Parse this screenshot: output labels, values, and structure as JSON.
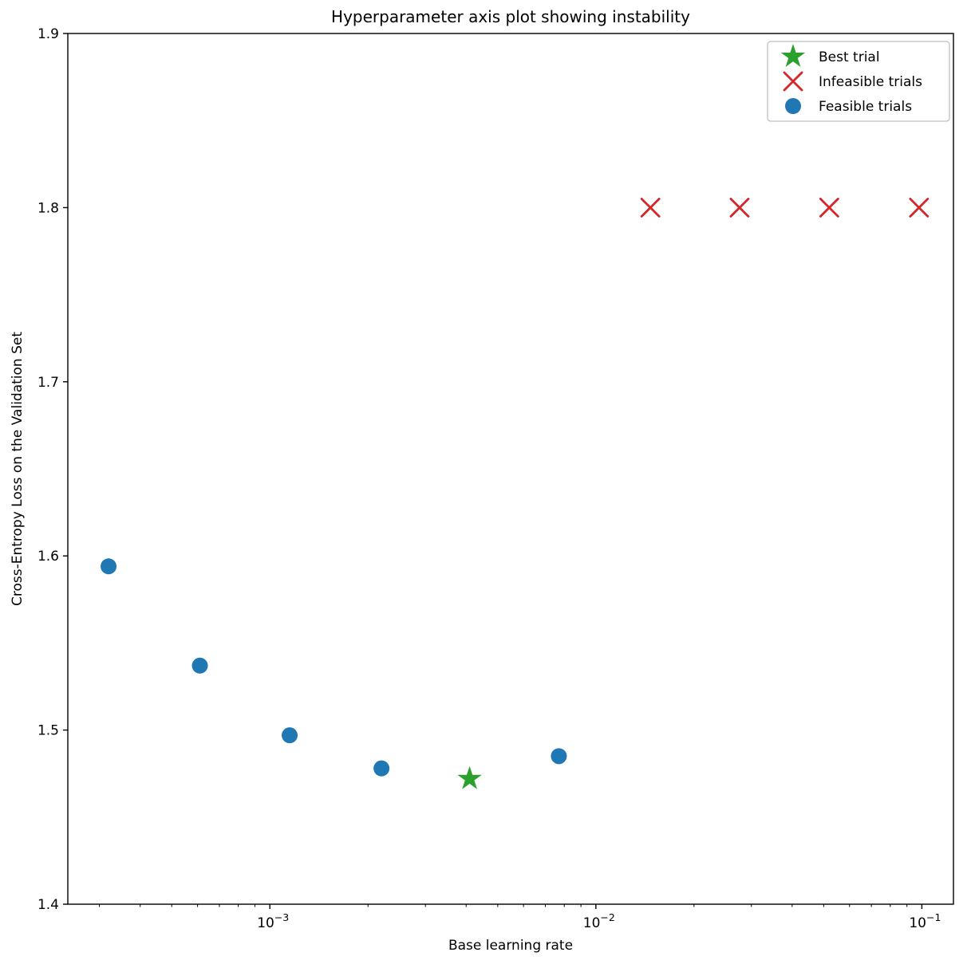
{
  "figure": {
    "background": "#ffffff"
  },
  "chart_data": {
    "type": "scatter",
    "title": "Hyperparameter axis plot showing instability",
    "xlabel": "Base learning rate",
    "ylabel": "Cross-Entropy Loss on the Validation Set",
    "x_scale": "log",
    "y_scale": "linear",
    "grid": false,
    "xlim": [
      0.00024,
      0.125
    ],
    "ylim": [
      1.4,
      1.9
    ],
    "xtick_values": [
      0.001,
      0.01,
      0.1
    ],
    "xtick_exponents": [
      -3,
      -2,
      -1
    ],
    "xtick_labels": [
      "10⁻³",
      "10⁻²",
      "10⁻¹"
    ],
    "ytick_values": [
      1.4,
      1.5,
      1.6,
      1.7,
      1.8,
      1.9
    ],
    "ytick_labels": [
      "1.4",
      "1.5",
      "1.6",
      "1.7",
      "1.8",
      "1.9"
    ],
    "legend": {
      "position": "upper right",
      "entries": [
        {
          "label": "Best trial",
          "marker": "star",
          "color": "#2ca02c"
        },
        {
          "label": "Infeasible trials",
          "marker": "x",
          "color": "#d62728"
        },
        {
          "label": "Feasible trials",
          "marker": "circle",
          "color": "#1f77b4"
        }
      ]
    },
    "series": [
      {
        "name": "Feasible trials",
        "marker": "circle",
        "color": "#1f77b4",
        "points": [
          [
            0.00032,
            1.594
          ],
          [
            0.00061,
            1.537
          ],
          [
            0.00115,
            1.497
          ],
          [
            0.0022,
            1.478
          ],
          [
            0.0077,
            1.485
          ]
        ]
      },
      {
        "name": "Best trial",
        "marker": "star",
        "color": "#2ca02c",
        "points": [
          [
            0.0041,
            1.472
          ]
        ]
      },
      {
        "name": "Infeasible trials",
        "marker": "x",
        "color": "#d62728",
        "points": [
          [
            0.0147,
            1.8
          ],
          [
            0.0276,
            1.8
          ],
          [
            0.052,
            1.8
          ],
          [
            0.098,
            1.8
          ]
        ]
      }
    ]
  }
}
